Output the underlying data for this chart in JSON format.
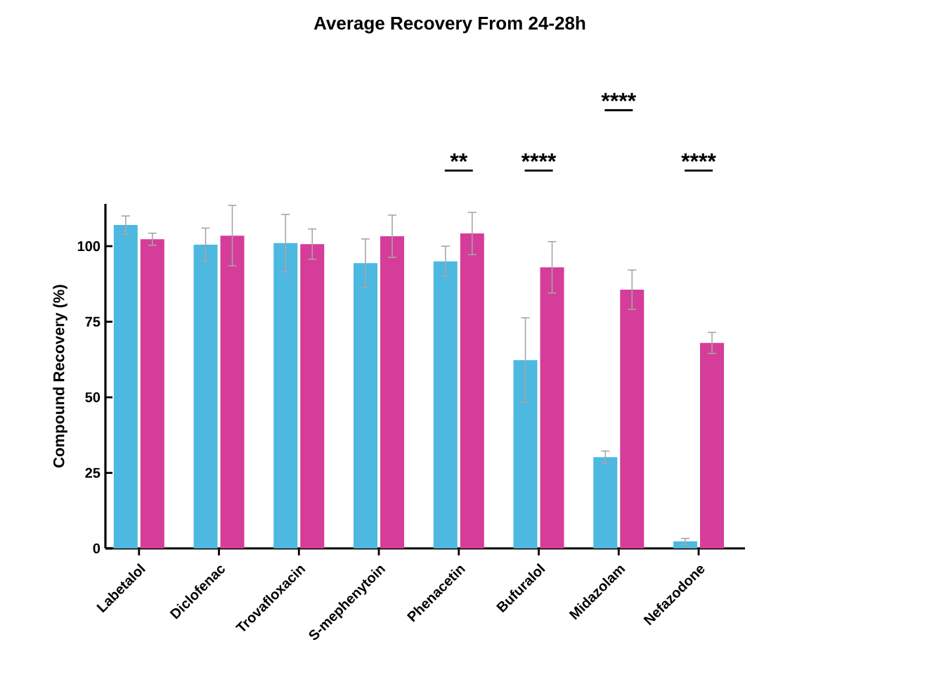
{
  "chart_data": {
    "type": "bar",
    "title": "Average Recovery From 24-28h",
    "ylabel": "Compound  Recovery  (%)",
    "categories": [
      "Labetalol",
      "Diclofenac",
      "Trovafloxacin",
      "S-mephenytoin",
      "Phenacetin",
      "Bufuralol",
      "Midazolam",
      "Nefazodone"
    ],
    "series": [
      {
        "color": "#4db8e0",
        "values": [
          107,
          100.5,
          101,
          94.4,
          95,
          62.3,
          30.2,
          2.3
        ],
        "errors": [
          3,
          5.5,
          9.5,
          8,
          5,
          14,
          2,
          1
        ]
      },
      {
        "color": "#d63c9a",
        "values": [
          102.3,
          103.5,
          100.7,
          103.3,
          104.2,
          93,
          85.6,
          68
        ],
        "errors": [
          2,
          10,
          5,
          7,
          7,
          8.5,
          6.5,
          3.5
        ]
      }
    ],
    "ylim": [
      0,
      114
    ],
    "yticks": [
      0,
      25,
      50,
      75,
      100
    ],
    "grid": false,
    "annotations": [
      "**",
      "****",
      "****",
      "****"
    ]
  }
}
